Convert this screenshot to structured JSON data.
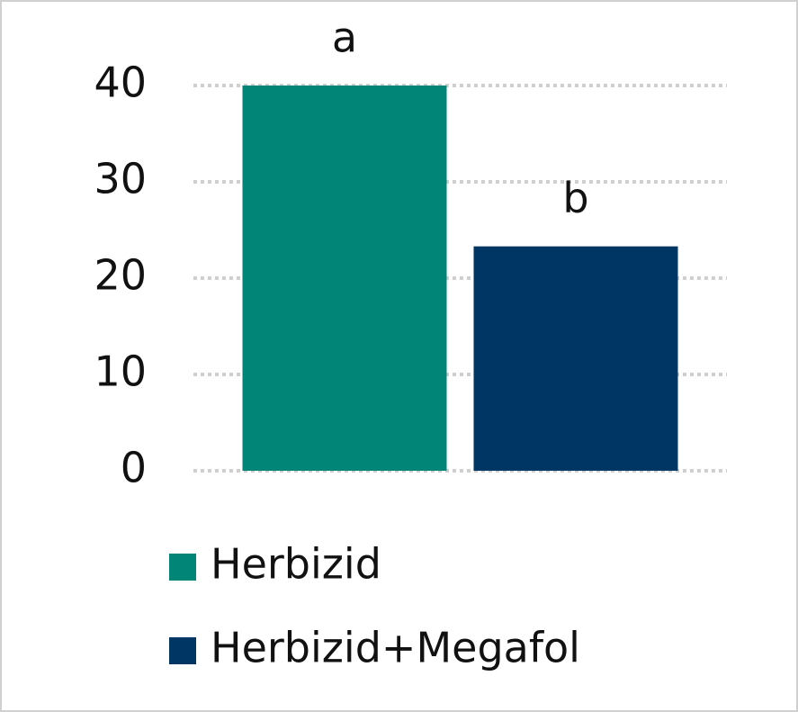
{
  "chart_data": {
    "type": "bar",
    "categories": [
      null
    ],
    "series": [
      {
        "name": "Herbizid",
        "color": "#008577",
        "values": [
          40
        ],
        "annotation": "a"
      },
      {
        "name": "Herbizid+Megafol",
        "color": "#003664",
        "values": [
          23.3
        ],
        "annotation": "b"
      }
    ],
    "ylim": [
      0,
      40
    ],
    "yticks": [
      0,
      10,
      20,
      30,
      40
    ],
    "grid": true,
    "legend": "bottom"
  }
}
